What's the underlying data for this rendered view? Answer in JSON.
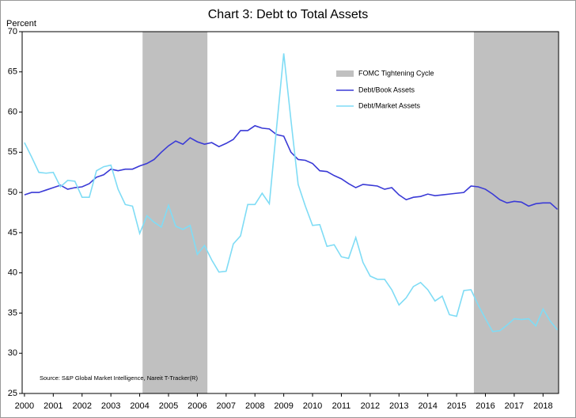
{
  "chart_data": {
    "type": "line",
    "title": "Chart 3: Debt to Total Assets",
    "ylabel": "Percent",
    "source": "Source: S&P Global Market Intelligence, Nareit T-Tracker(R)",
    "x": [
      2000.0,
      2000.25,
      2000.5,
      2000.75,
      2001.0,
      2001.25,
      2001.5,
      2001.75,
      2002.0,
      2002.25,
      2002.5,
      2002.75,
      2003.0,
      2003.25,
      2003.5,
      2003.75,
      2004.0,
      2004.25,
      2004.5,
      2004.75,
      2005.0,
      2005.25,
      2005.5,
      2005.75,
      2006.0,
      2006.25,
      2006.5,
      2006.75,
      2007.0,
      2007.25,
      2007.5,
      2007.75,
      2008.0,
      2008.25,
      2008.5,
      2008.75,
      2009.0,
      2009.25,
      2009.5,
      2009.75,
      2010.0,
      2010.25,
      2010.5,
      2010.75,
      2011.0,
      2011.25,
      2011.5,
      2011.75,
      2012.0,
      2012.25,
      2012.5,
      2012.75,
      2013.0,
      2013.25,
      2013.5,
      2013.75,
      2014.0,
      2014.25,
      2014.5,
      2014.75,
      2015.0,
      2015.25,
      2015.5,
      2015.75,
      2016.0,
      2016.25,
      2016.5,
      2016.75,
      2017.0,
      2017.25,
      2017.5,
      2017.75,
      2018.0,
      2018.25,
      2018.5
    ],
    "series": [
      {
        "name": "Debt/Book Assets",
        "color": "#3a3ad6",
        "values": [
          49.7,
          50.0,
          50.0,
          50.3,
          50.6,
          50.9,
          50.4,
          50.6,
          50.7,
          51.1,
          51.9,
          52.2,
          52.9,
          52.7,
          52.9,
          52.9,
          53.3,
          53.6,
          54.1,
          55.0,
          55.8,
          56.4,
          56.0,
          56.8,
          56.3,
          56.0,
          56.2,
          55.7,
          56.1,
          56.6,
          57.7,
          57.7,
          58.3,
          58.0,
          57.9,
          57.2,
          57.0,
          55.0,
          54.1,
          54.0,
          53.6,
          52.7,
          52.6,
          52.1,
          51.7,
          51.1,
          50.6,
          51.0,
          50.9,
          50.8,
          50.4,
          50.6,
          49.7,
          49.1,
          49.4,
          49.5,
          49.8,
          49.6,
          49.7,
          49.8,
          49.9,
          50.0,
          50.8,
          50.7,
          50.4,
          49.8,
          49.1,
          48.7,
          48.9,
          48.8,
          48.3,
          48.6,
          48.7,
          48.7,
          47.9
        ]
      },
      {
        "name": "Debt/Market Assets",
        "color": "#7fdcf5",
        "values": [
          56.2,
          54.4,
          52.5,
          52.4,
          52.5,
          50.7,
          51.5,
          51.4,
          49.4,
          49.4,
          52.7,
          53.2,
          53.4,
          50.4,
          48.5,
          48.3,
          44.9,
          47.1,
          46.3,
          45.7,
          48.4,
          45.8,
          45.4,
          45.9,
          42.3,
          43.4,
          41.6,
          40.1,
          40.2,
          43.6,
          44.6,
          48.5,
          48.5,
          49.9,
          48.6,
          58.0,
          67.3,
          59.0,
          51.0,
          48.3,
          45.9,
          46.0,
          43.3,
          43.5,
          42.0,
          41.8,
          44.4,
          41.3,
          39.6,
          39.2,
          39.2,
          37.9,
          36.0,
          36.9,
          38.3,
          38.8,
          37.9,
          36.5,
          37.1,
          34.8,
          34.6,
          37.8,
          37.9,
          36.0,
          34.3,
          32.7,
          32.8,
          33.5,
          34.3,
          34.2,
          34.3,
          33.4,
          35.5,
          34.0,
          32.9
        ]
      }
    ],
    "shading": {
      "name": "FOMC Tightening Cycle",
      "color": "#c0c0c0",
      "periods": [
        [
          2004.1,
          2006.35
        ],
        [
          2015.6,
          2018.54
        ]
      ]
    },
    "xlim": [
      1999.92,
      2018.54
    ],
    "xticks": [
      2000,
      2001,
      2002,
      2003,
      2004,
      2005,
      2006,
      2007,
      2008,
      2009,
      2010,
      2011,
      2012,
      2013,
      2014,
      2015,
      2016,
      2017,
      2018
    ],
    "ylim": [
      25,
      70
    ],
    "yticks": [
      25,
      30,
      35,
      40,
      45,
      50,
      55,
      60,
      65,
      70
    ]
  }
}
